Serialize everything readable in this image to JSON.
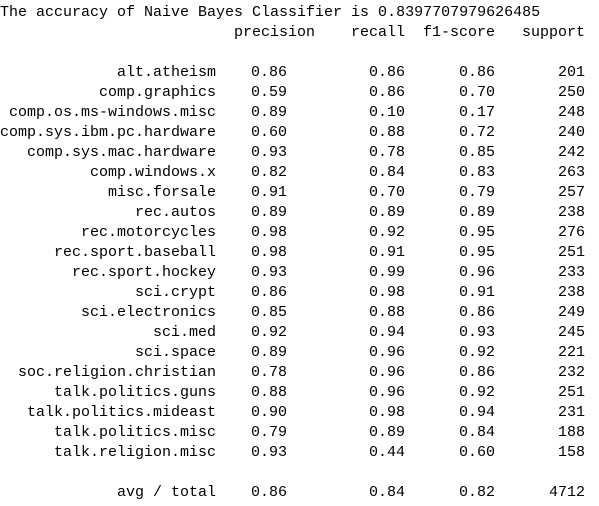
{
  "output": {
    "title": "The accuracy of Naive Bayes Classifier is 0.8397707979626485",
    "header": [
      "precision",
      "recall",
      "f1-score",
      "support"
    ],
    "rows": [
      [
        "alt.atheism",
        "0.86",
        "0.86",
        "0.86",
        "201"
      ],
      [
        "comp.graphics",
        "0.59",
        "0.86",
        "0.70",
        "250"
      ],
      [
        "comp.os.ms-windows.misc",
        "0.89",
        "0.10",
        "0.17",
        "248"
      ],
      [
        "comp.sys.ibm.pc.hardware",
        "0.60",
        "0.88",
        "0.72",
        "240"
      ],
      [
        "comp.sys.mac.hardware",
        "0.93",
        "0.78",
        "0.85",
        "242"
      ],
      [
        "comp.windows.x",
        "0.82",
        "0.84",
        "0.83",
        "263"
      ],
      [
        "misc.forsale",
        "0.91",
        "0.70",
        "0.79",
        "257"
      ],
      [
        "rec.autos",
        "0.89",
        "0.89",
        "0.89",
        "238"
      ],
      [
        "rec.motorcycles",
        "0.98",
        "0.92",
        "0.95",
        "276"
      ],
      [
        "rec.sport.baseball",
        "0.98",
        "0.91",
        "0.95",
        "251"
      ],
      [
        "rec.sport.hockey",
        "0.93",
        "0.99",
        "0.96",
        "233"
      ],
      [
        "sci.crypt",
        "0.86",
        "0.98",
        "0.91",
        "238"
      ],
      [
        "sci.electronics",
        "0.85",
        "0.88",
        "0.86",
        "249"
      ],
      [
        "sci.med",
        "0.92",
        "0.94",
        "0.93",
        "245"
      ],
      [
        "sci.space",
        "0.89",
        "0.96",
        "0.92",
        "221"
      ],
      [
        "soc.religion.christian",
        "0.78",
        "0.96",
        "0.86",
        "232"
      ],
      [
        "talk.politics.guns",
        "0.88",
        "0.96",
        "0.92",
        "251"
      ],
      [
        "talk.politics.mideast",
        "0.90",
        "0.98",
        "0.94",
        "231"
      ],
      [
        "talk.politics.misc",
        "0.79",
        "0.89",
        "0.84",
        "188"
      ],
      [
        "talk.religion.misc",
        "0.93",
        "0.44",
        "0.60",
        "158"
      ]
    ],
    "total": [
      "avg / total",
      "0.86",
      "0.84",
      "0.82",
      "4712"
    ]
  }
}
